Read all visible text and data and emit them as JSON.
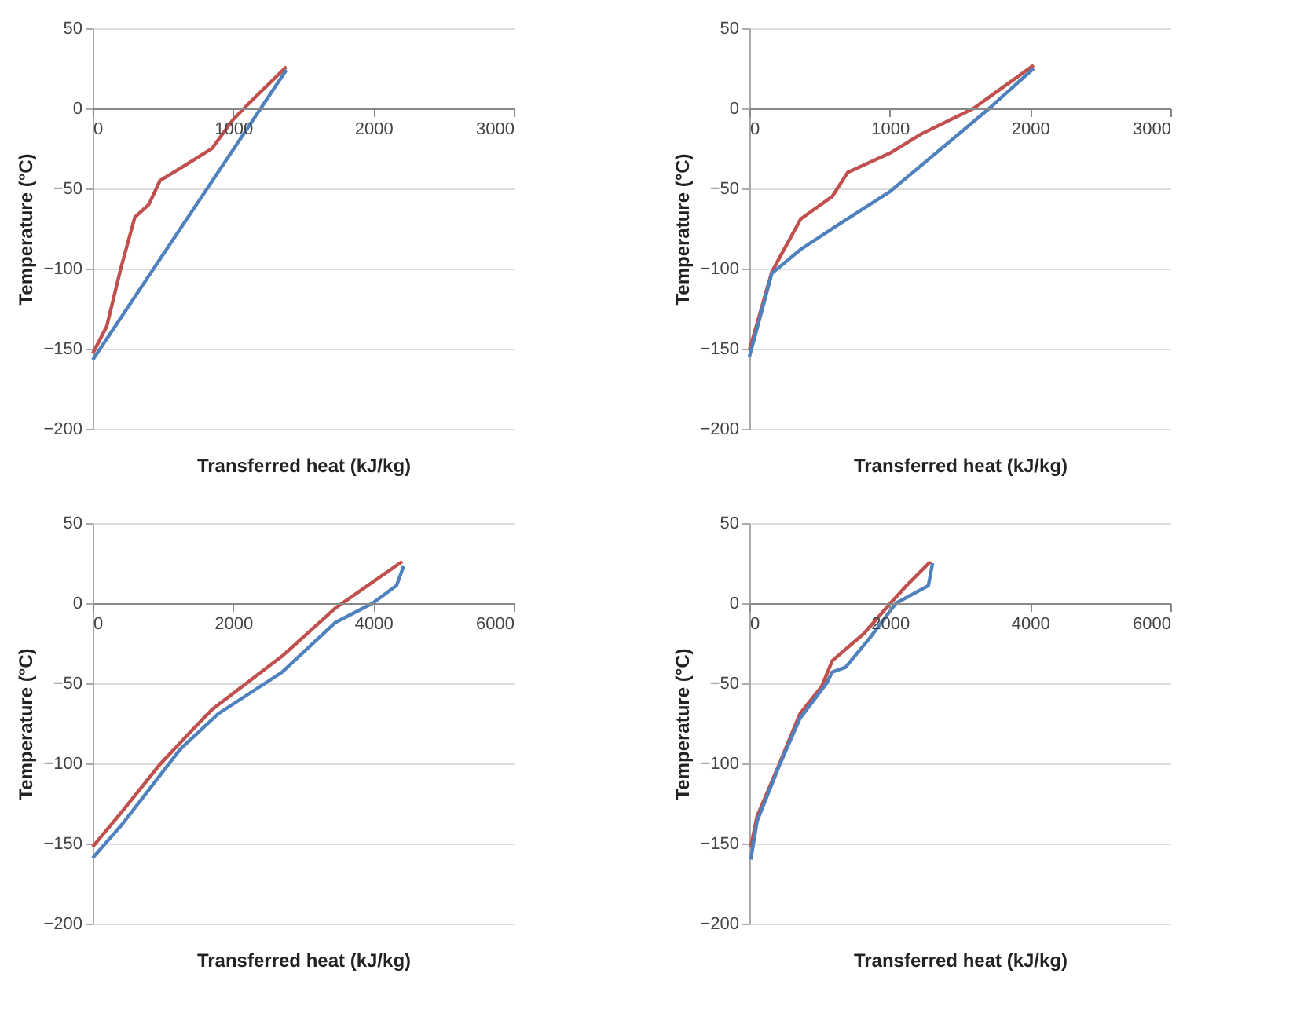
{
  "chart_data": [
    {
      "type": "line",
      "xlabel": "Transferred heat (kJ/kg)",
      "ylabel": "Temperature (°C)",
      "xlim": [
        0,
        3000
      ],
      "xticks": [
        0,
        1000,
        2000,
        3000
      ],
      "ylim": [
        -200,
        50
      ],
      "yticks": [
        -200,
        -150,
        -100,
        -50,
        0,
        50
      ],
      "grid": "y",
      "line_style": "solid",
      "series": [
        {
          "color": "#c0504d",
          "x": [
            0,
            100,
            200,
            300,
            400,
            480,
            650,
            850,
            1000,
            1100,
            1380
          ],
          "values": [
            -153,
            -136,
            -100,
            -68,
            -60,
            -45,
            -36,
            -25,
            -7,
            2,
            26
          ]
        },
        {
          "color": "#4f81bd",
          "x": [
            0,
            1380
          ],
          "values": [
            -157,
            24
          ]
        }
      ]
    },
    {
      "type": "line",
      "xlabel": "Transferred heat (kJ/kg)",
      "ylabel": "Temperature (°C)",
      "xlim": [
        0,
        3000
      ],
      "xticks": [
        0,
        1000,
        2000,
        3000
      ],
      "ylim": [
        -200,
        50
      ],
      "yticks": [
        -200,
        -150,
        -100,
        -50,
        0,
        50
      ],
      "grid": "y",
      "line_style": "solid",
      "series": [
        {
          "color": "#c0504d",
          "x": [
            0,
            160,
            366,
            590,
            700,
            1000,
            1224,
            1597,
            2026
          ],
          "values": [
            -151,
            -102,
            -69,
            -55,
            -40,
            -28,
            -16,
            0,
            27
          ]
        },
        {
          "color": "#4f81bd",
          "x": [
            0,
            160,
            366,
            627,
            1000,
            1709,
            2026
          ],
          "values": [
            -155,
            -103,
            -88,
            -73,
            -52,
            0,
            25
          ]
        }
      ]
    },
    {
      "type": "line",
      "xlabel": "Transferred heat (kJ/kg)",
      "ylabel": "Temperature (°C)",
      "xlim": [
        0,
        6000
      ],
      "xticks": [
        0,
        2000,
        4000,
        6000
      ],
      "ylim": [
        -200,
        50
      ],
      "yticks": [
        -200,
        -150,
        -100,
        -50,
        0,
        50
      ],
      "grid": "y",
      "line_style": "solid",
      "series": [
        {
          "color": "#c0504d",
          "x": [
            0,
            420,
            950,
            1400,
            1710,
            2700,
            3460,
            4410
          ],
          "values": [
            -152,
            -130,
            -101,
            -80,
            -66,
            -33,
            -3,
            26
          ]
        },
        {
          "color": "#4f81bd",
          "x": [
            0,
            420,
            1250,
            1790,
            2700,
            3460,
            3990,
            4330,
            4430
          ],
          "values": [
            -159,
            -138,
            -91,
            -69,
            -43,
            -12,
            0,
            11,
            23
          ]
        }
      ]
    },
    {
      "type": "line",
      "xlabel": "Transferred heat (kJ/kg)",
      "ylabel": "Temperature (°C)",
      "xlim": [
        0,
        6000
      ],
      "xticks": [
        0,
        2000,
        4000,
        6000
      ],
      "ylim": [
        -200,
        50
      ],
      "yticks": [
        -200,
        -150,
        -100,
        -50,
        0,
        50
      ],
      "grid": "y",
      "line_style": "solid",
      "series": [
        {
          "color": "#c0504d",
          "x": [
            20,
            110,
            420,
            720,
            1030,
            1180,
            1630,
            2010,
            2240,
            2580
          ],
          "values": [
            -152,
            -133,
            -101,
            -69,
            -52,
            -36,
            -19,
            0,
            11,
            26
          ]
        },
        {
          "color": "#4f81bd",
          "x": [
            20,
            110,
            420,
            720,
            1100,
            1180,
            1370,
            1710,
            2090,
            2550,
            2610
          ],
          "values": [
            -160,
            -136,
            -102,
            -72,
            -50,
            -43,
            -40,
            -22,
            0,
            11,
            25
          ]
        }
      ]
    }
  ]
}
